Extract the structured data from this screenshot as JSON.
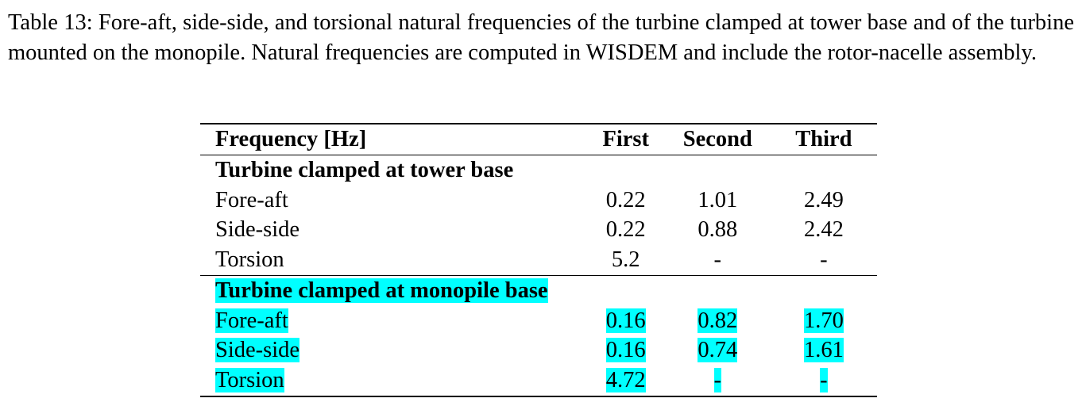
{
  "caption": "Table 13: Fore-aft, side-side, and torsional natural frequencies of the turbine clamped at tower base and of the turbine mounted on the monopile. Natural frequencies are computed in WISDEM and include the rotor-nacelle assembly.",
  "table": {
    "headers": {
      "label": "Frequency [Hz]",
      "first": "First",
      "second": "Second",
      "third": "Third"
    },
    "section1": {
      "title": "Turbine clamped at tower base",
      "rows": [
        {
          "label": "Fore-aft",
          "first": "0.22",
          "second": "1.01",
          "third": "2.49"
        },
        {
          "label": "Side-side",
          "first": "0.22",
          "second": "0.88",
          "third": "2.42"
        },
        {
          "label": "Torsion",
          "first": "5.2",
          "second": "-",
          "third": "-"
        }
      ]
    },
    "section2": {
      "title": "Turbine clamped at monopile base",
      "rows": [
        {
          "label": "Fore-aft",
          "first": "0.16",
          "second": "0.82",
          "third": "1.70"
        },
        {
          "label": "Side-side",
          "first": "0.16",
          "second": "0.74",
          "third": "1.61"
        },
        {
          "label": "Torsion",
          "first": "4.72",
          "second": "-",
          "third": "-"
        }
      ]
    }
  },
  "highlight_color": "#00ffff"
}
